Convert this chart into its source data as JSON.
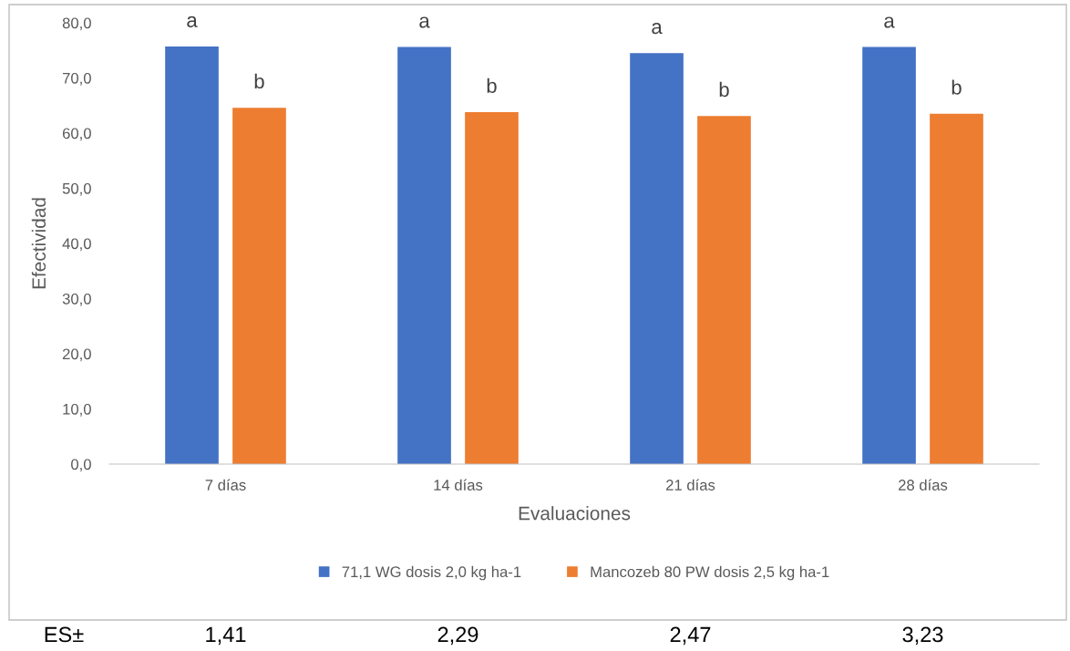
{
  "chart_data": {
    "type": "bar",
    "xlabel": "Evaluaciones",
    "ylabel": "Efectividad",
    "categories": [
      "7 días",
      "14 días",
      "21 días",
      "28 días"
    ],
    "series": [
      {
        "name": "71,1 WG dosis 2,0 kg ha-1",
        "color": "#4472c4",
        "values": [
          75.7,
          75.6,
          74.5,
          75.6
        ],
        "value_labels": [
          "a",
          "a",
          "a",
          "a"
        ]
      },
      {
        "name": "Mancozeb 80 PW dosis 2,5 kg ha-1",
        "color": "#ed7d31",
        "values": [
          64.6,
          63.8,
          63.1,
          63.5
        ],
        "value_labels": [
          "b",
          "b",
          "b",
          "b"
        ]
      }
    ],
    "ylim": [
      0,
      80
    ],
    "yticks": [
      {
        "value": 0,
        "label": "0,0"
      },
      {
        "value": 10,
        "label": "10,0"
      },
      {
        "value": 20,
        "label": "20,0"
      },
      {
        "value": 30,
        "label": "30,0"
      },
      {
        "value": 40,
        "label": "40,0"
      },
      {
        "value": 50,
        "label": "50,0"
      },
      {
        "value": 60,
        "label": "60,0"
      },
      {
        "value": 70,
        "label": "70,0"
      },
      {
        "value": 80,
        "label": "80,0"
      }
    ],
    "grid": false,
    "legend": "bottom",
    "annotations": [
      "ES±",
      "1,41",
      "2,29",
      "2,47",
      "3,23"
    ]
  }
}
